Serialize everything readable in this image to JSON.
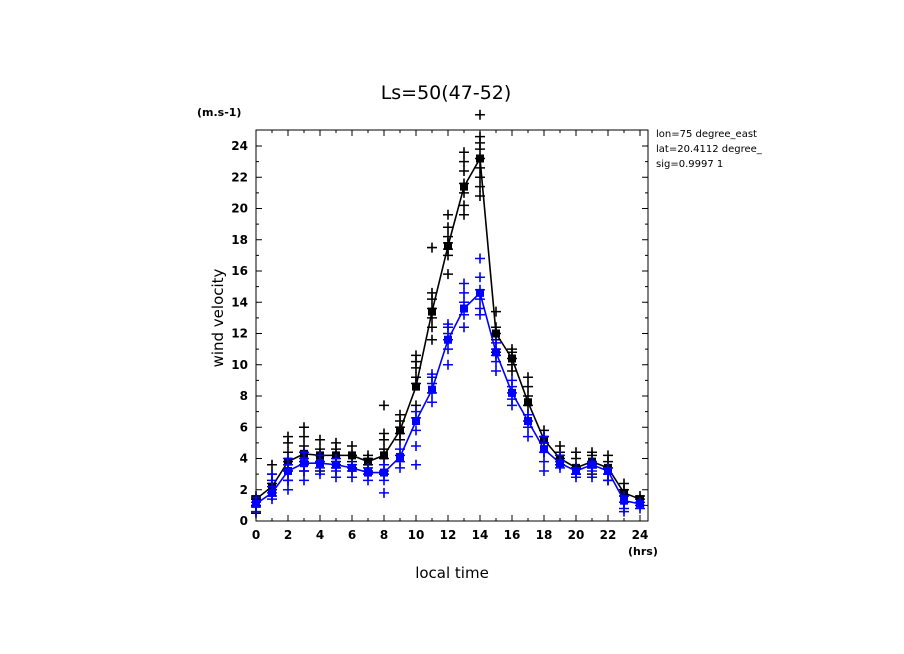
{
  "chart_data": {
    "type": "line",
    "title": "Ls=50(47-52)",
    "xlabel": "local time",
    "ylabel": "wind velocity",
    "x_unit": "(hrs)",
    "y_unit": "(m.s-1)",
    "xlim": [
      0,
      24
    ],
    "ylim": [
      0,
      25
    ],
    "x_ticks": [
      "0",
      "2",
      "4",
      "6",
      "8",
      "10",
      "12",
      "14",
      "16",
      "18",
      "20",
      "22",
      "24"
    ],
    "y_ticks": [
      "0",
      "2",
      "4",
      "6",
      "8",
      "10",
      "12",
      "14",
      "16",
      "18",
      "20",
      "22",
      "24"
    ],
    "info_lines": [
      "lon=75 degree_east",
      "lat=20.4112 degree_",
      "sig=0.9997 1"
    ],
    "x": [
      0,
      1,
      2,
      3,
      4,
      5,
      6,
      7,
      8,
      9,
      10,
      11,
      12,
      13,
      14,
      15,
      16,
      17,
      18,
      19,
      20,
      21,
      22,
      23,
      24
    ],
    "series": [
      {
        "color": "#000000",
        "values": [
          1.4,
          2.2,
          3.8,
          4.3,
          4.2,
          4.2,
          4.2,
          3.8,
          4.2,
          5.8,
          8.6,
          13.4,
          17.6,
          21.4,
          23.2,
          12.0,
          10.4,
          7.6,
          5.2,
          4.0,
          3.4,
          3.8,
          3.4,
          1.8,
          1.4
        ],
        "samples": [
          [
            0.5,
            1.0,
            1.4,
            1.6,
            1.4
          ],
          [
            1.6,
            2.0,
            2.4,
            3.0,
            3.6
          ],
          [
            2.6,
            3.2,
            3.8,
            4.4,
            5.0,
            5.4
          ],
          [
            3.2,
            3.8,
            4.4,
            4.8,
            5.4,
            6.0
          ],
          [
            3.2,
            3.8,
            4.2,
            4.6,
            5.2
          ],
          [
            3.4,
            3.8,
            4.2,
            4.6,
            5.0
          ],
          [
            3.4,
            3.8,
            4.2,
            4.8
          ],
          [
            3.2,
            3.6,
            4.0,
            4.2
          ],
          [
            3.0,
            4.0,
            4.6,
            5.2,
            5.6,
            7.4
          ],
          [
            5.2,
            5.6,
            6.0,
            6.4,
            6.8
          ],
          [
            7.4,
            8.8,
            9.2,
            9.8,
            10.2,
            10.6
          ],
          [
            11.6,
            12.4,
            13.0,
            13.6,
            14.2,
            14.6,
            17.5
          ],
          [
            15.8,
            17.0,
            17.4,
            17.8,
            18.2,
            18.8,
            19.6
          ],
          [
            19.6,
            20.2,
            21.0,
            21.6,
            22.4,
            23.0,
            23.6
          ],
          [
            20.8,
            21.4,
            22.0,
            22.6,
            23.2,
            23.8,
            24.2,
            24.6,
            26.0
          ],
          [
            10.8,
            11.6,
            12.0,
            12.4,
            13.4
          ],
          [
            9.6,
            10.0,
            10.4,
            10.8,
            11.0
          ],
          [
            6.8,
            7.4,
            8.0,
            8.6,
            9.2
          ],
          [
            4.4,
            5.0,
            5.4,
            5.8
          ],
          [
            3.6,
            4.0,
            4.4,
            4.8
          ],
          [
            3.0,
            3.4,
            4.0,
            4.4
          ],
          [
            3.0,
            3.4,
            3.8,
            4.2,
            4.4
          ],
          [
            2.6,
            3.0,
            3.4,
            3.8,
            4.2
          ],
          [
            1.2,
            1.6,
            2.0,
            2.4
          ],
          [
            1.2,
            1.4,
            1.6
          ]
        ]
      },
      {
        "color": "#0000ff",
        "values": [
          1.1,
          1.8,
          3.2,
          3.7,
          3.7,
          3.6,
          3.4,
          3.1,
          3.1,
          4.1,
          6.4,
          8.4,
          11.6,
          13.6,
          14.6,
          10.8,
          8.2,
          6.4,
          4.6,
          3.7,
          3.2,
          3.6,
          3.2,
          1.3,
          1.1
        ],
        "samples": [
          [
            0.6,
            0.9,
            1.2,
            1.5
          ],
          [
            1.4,
            1.8,
            2.2,
            2.6,
            3.0
          ],
          [
            2.0,
            2.6,
            3.2,
            3.6,
            4.0
          ],
          [
            2.6,
            3.2,
            3.6,
            4.0,
            4.4
          ],
          [
            3.0,
            3.4,
            3.8,
            4.2
          ],
          [
            2.8,
            3.2,
            3.6,
            4.0
          ],
          [
            2.8,
            3.2,
            3.6
          ],
          [
            2.6,
            3.0,
            3.4
          ],
          [
            1.8,
            2.6,
            3.2,
            3.6
          ],
          [
            3.4,
            3.8,
            4.2,
            4.6
          ],
          [
            3.6,
            4.8,
            5.8,
            6.6,
            7.0
          ],
          [
            7.6,
            8.2,
            8.8,
            9.2,
            9.4
          ],
          [
            10.0,
            11.0,
            11.6,
            12.0,
            12.4,
            12.6
          ],
          [
            12.4,
            13.2,
            14.0,
            14.6,
            15.2
          ],
          [
            13.2,
            13.6,
            14.2,
            14.8,
            15.6,
            16.8
          ],
          [
            9.6,
            10.2,
            10.6,
            11.0,
            11.4
          ],
          [
            7.4,
            7.8,
            8.2,
            8.6,
            9.0
          ],
          [
            5.4,
            6.0,
            6.4,
            6.8
          ],
          [
            3.2,
            3.8,
            4.4,
            5.0,
            5.4
          ],
          [
            3.4,
            3.6,
            3.8,
            4.2
          ],
          [
            2.8,
            3.0,
            3.4
          ],
          [
            2.8,
            3.2,
            3.6,
            3.8
          ],
          [
            2.6,
            3.0,
            3.4
          ],
          [
            0.6,
            0.8,
            1.2,
            1.6
          ],
          [
            0.8,
            1.0,
            1.2
          ]
        ]
      }
    ]
  }
}
